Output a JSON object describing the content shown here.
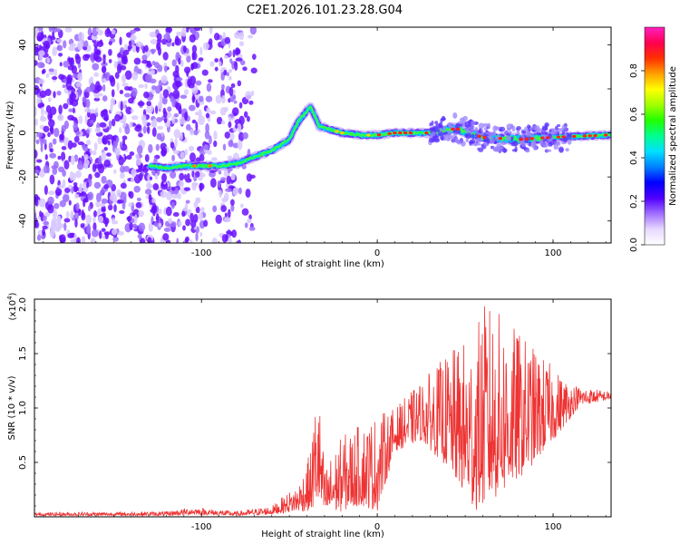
{
  "chart_data": [
    {
      "type": "heatmap",
      "title": "C2E1.2026.101.23.28.G04",
      "xlabel": "Height of straight line (km)",
      "ylabel": "Frequency (Hz)",
      "xlim": [
        -195,
        133
      ],
      "ylim": [
        -50,
        48
      ],
      "xticks": [
        -100,
        0,
        100
      ],
      "yticks": [
        -40,
        -20,
        0,
        20,
        40
      ],
      "colorbar": {
        "label": "Normalized spectral amplitude",
        "range": [
          0.0,
          1.0
        ],
        "ticks": [
          "0.0",
          "0.2",
          "0.4",
          "0.6",
          "0.8"
        ],
        "colors": [
          "#ffffff",
          "#e8d8ff",
          "#a070ff",
          "#5000ff",
          "#0000ff",
          "#0080ff",
          "#00e0ff",
          "#00ff90",
          "#20ff00",
          "#a0ff00",
          "#ffff00",
          "#ffa000",
          "#ff3000",
          "#ff0050",
          "#ff20c0"
        ]
      },
      "ridge": [
        {
          "x": -130,
          "y": -15
        },
        {
          "x": -120,
          "y": -16
        },
        {
          "x": -110,
          "y": -15
        },
        {
          "x": -90,
          "y": -15
        },
        {
          "x": -80,
          "y": -14
        },
        {
          "x": -70,
          "y": -11
        },
        {
          "x": -60,
          "y": -8
        },
        {
          "x": -50,
          "y": -3
        },
        {
          "x": -45,
          "y": 5
        },
        {
          "x": -38,
          "y": 12
        },
        {
          "x": -33,
          "y": 3
        },
        {
          "x": -20,
          "y": 0
        },
        {
          "x": -10,
          "y": -1
        },
        {
          "x": 0,
          "y": -1
        },
        {
          "x": 10,
          "y": 0
        },
        {
          "x": 30,
          "y": 0
        },
        {
          "x": 45,
          "y": 2
        },
        {
          "x": 60,
          "y": -2
        },
        {
          "x": 80,
          "y": -3
        },
        {
          "x": 100,
          "y": -2
        },
        {
          "x": 130,
          "y": -1
        }
      ]
    },
    {
      "type": "line",
      "xlabel": "Height of straight line (km)",
      "ylabel": "SNR (10 * v/v)",
      "exponent": "(x10",
      "exponent_power": "4",
      "xlim": [
        -195,
        133
      ],
      "ylim": [
        0,
        2.0
      ],
      "xticks": [
        -100,
        0,
        100
      ],
      "yticks": [
        "0.5",
        "1.0",
        "1.5",
        "2.0"
      ],
      "color": "#ee3333",
      "envelope": [
        {
          "x": -195,
          "lo": 0.01,
          "hi": 0.04
        },
        {
          "x": -120,
          "lo": 0.01,
          "hi": 0.05
        },
        {
          "x": -105,
          "lo": 0.02,
          "hi": 0.09
        },
        {
          "x": -80,
          "lo": 0.01,
          "hi": 0.05
        },
        {
          "x": -60,
          "lo": 0.02,
          "hi": 0.1
        },
        {
          "x": -45,
          "lo": 0.05,
          "hi": 0.3
        },
        {
          "x": -38,
          "lo": 0.05,
          "hi": 0.6
        },
        {
          "x": -34,
          "lo": 0.1,
          "hi": 1.3
        },
        {
          "x": -30,
          "lo": 0.02,
          "hi": 0.45
        },
        {
          "x": -20,
          "lo": 0.05,
          "hi": 0.75
        },
        {
          "x": -10,
          "lo": 0.1,
          "hi": 0.85
        },
        {
          "x": 0,
          "lo": 0.05,
          "hi": 0.95
        },
        {
          "x": 10,
          "lo": 0.6,
          "hi": 1.0
        },
        {
          "x": 25,
          "lo": 0.7,
          "hi": 1.25
        },
        {
          "x": 40,
          "lo": 0.45,
          "hi": 1.5
        },
        {
          "x": 55,
          "lo": 0.05,
          "hi": 1.7
        },
        {
          "x": 62,
          "lo": 0.1,
          "hi": 2.0
        },
        {
          "x": 75,
          "lo": 0.25,
          "hi": 1.8
        },
        {
          "x": 90,
          "lo": 0.5,
          "hi": 1.55
        },
        {
          "x": 105,
          "lo": 0.8,
          "hi": 1.3
        },
        {
          "x": 115,
          "lo": 1.02,
          "hi": 1.2
        },
        {
          "x": 133,
          "lo": 1.08,
          "hi": 1.15
        }
      ]
    }
  ]
}
